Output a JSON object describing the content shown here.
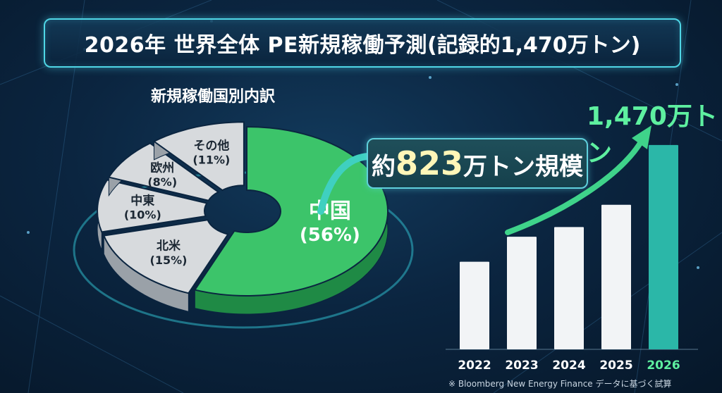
{
  "title": {
    "main": "2026年 世界全体 PE新規稼働予測",
    "sub": "(記録的1,470万トン)"
  },
  "pie_title": "新規稼働国別内訳",
  "callout": {
    "prefix": "約",
    "value": "823",
    "suffix": "万トン規模"
  },
  "bar_annotation": "1,470万トン",
  "source_note": "※ Bloomberg New Energy Finance データに基づく試算",
  "colors": {
    "accent_cyan": "#4fd6e6",
    "china_green": "#3cc46a",
    "others_gray": "#d7dadd",
    "bar_white": "#f2f4f6",
    "bar_highlight": "#2bb7a8",
    "highlight_text": "#5ef0a0"
  },
  "chart_data": [
    {
      "type": "pie",
      "title": "新規稼働国別内訳",
      "slices": [
        {
          "label": "中国",
          "value": 56,
          "display": "(56%)"
        },
        {
          "label": "北米",
          "value": 15,
          "display": "(15%)"
        },
        {
          "label": "中東",
          "value": 10,
          "display": "(10%)"
        },
        {
          "label": "欧州",
          "value": 8,
          "display": "(8%)"
        },
        {
          "label": "その他",
          "value": 11,
          "display": "(11%)"
        }
      ]
    },
    {
      "type": "bar",
      "categories": [
        "2022",
        "2023",
        "2024",
        "2025",
        "2026"
      ],
      "values": [
        630,
        810,
        880,
        1040,
        1470
      ],
      "highlight": "2026",
      "annotation": "1,470万トン",
      "ylim": [
        0,
        1500
      ],
      "grid": false
    }
  ]
}
